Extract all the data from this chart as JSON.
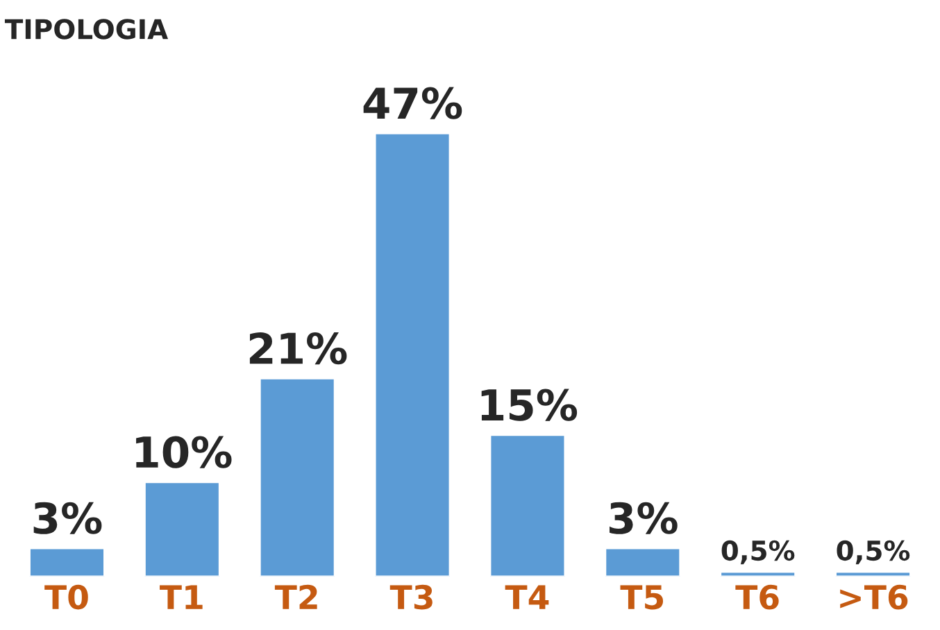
{
  "chart_data": {
    "type": "bar",
    "title": "TIPOLOGIA",
    "categories": [
      "T0",
      "T1",
      "T2",
      "T3",
      "T4",
      "T5",
      "T6",
      ">T6"
    ],
    "values": [
      3,
      10,
      21,
      47,
      15,
      3,
      0.5,
      0.5
    ],
    "value_labels": [
      "3%",
      "10%",
      "21%",
      "47%",
      "15%",
      "3%",
      "0,5%",
      "0,5%"
    ],
    "color": "#5b9bd5",
    "grid": false,
    "legend": false
  }
}
